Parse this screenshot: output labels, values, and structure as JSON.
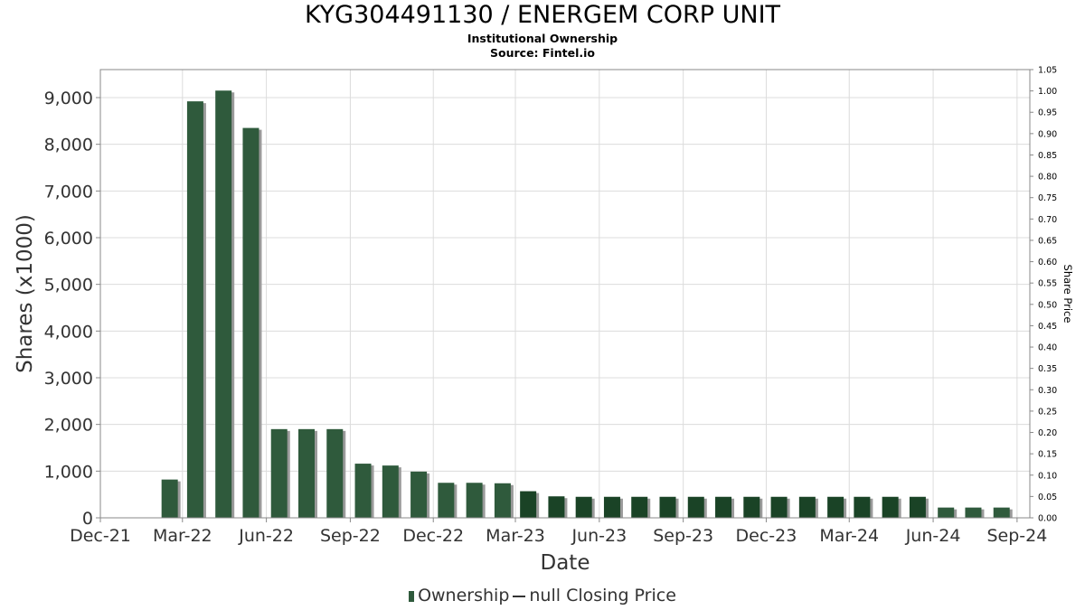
{
  "title": "KYG304491130 / ENERGEM CORP UNIT",
  "subtitle": "Institutional Ownership",
  "source": "Source: Fintel.io",
  "legend": {
    "ownership_label": "Ownership",
    "price_label": "null Closing Price"
  },
  "colors": {
    "bar": "#2f5a3c",
    "bar_dark": "#1a4326",
    "shadow": "#9a9a9a",
    "grid": "#dcdcdc"
  },
  "chart_data": {
    "type": "bar",
    "xlabel": "Date",
    "ylabel": "Shares (x1000)",
    "y2label": "Share Price",
    "ylim": [
      0,
      9600
    ],
    "y2lim": [
      0,
      1.05
    ],
    "xlim": [
      "2021-12-01",
      "2024-09-15"
    ],
    "grid": true,
    "legend_position": "bottom",
    "x_ticks": [
      "Dec-21",
      "Mar-22",
      "Jun-22",
      "Sep-22",
      "Dec-22",
      "Mar-23",
      "Jun-23",
      "Sep-23",
      "Dec-23",
      "Mar-24",
      "Jun-24",
      "Sep-24"
    ],
    "y_ticks": [
      "0",
      "1,000",
      "2,000",
      "3,000",
      "4,000",
      "5,000",
      "6,000",
      "7,000",
      "8,000",
      "9,000"
    ],
    "y2_ticks": [
      "0.00",
      "0.05",
      "0.10",
      "0.15",
      "0.20",
      "0.25",
      "0.30",
      "0.35",
      "0.40",
      "0.45",
      "0.50",
      "0.55",
      "0.60",
      "0.65",
      "0.70",
      "0.75",
      "0.80",
      "0.85",
      "0.90",
      "0.95",
      "1.00",
      "1.05"
    ],
    "series": [
      {
        "name": "Ownership",
        "x": [
          "2022-02-15",
          "2022-03-15",
          "2022-04-15",
          "2022-05-15",
          "2022-06-15",
          "2022-07-15",
          "2022-08-15",
          "2022-09-15",
          "2022-10-15",
          "2022-11-15",
          "2022-12-15",
          "2023-01-15",
          "2023-02-15",
          "2023-03-15",
          "2023-04-15",
          "2023-05-15",
          "2023-06-15",
          "2023-07-15",
          "2023-08-15",
          "2023-09-15",
          "2023-10-15",
          "2023-11-15",
          "2023-12-15",
          "2024-01-15",
          "2024-02-15",
          "2024-03-15",
          "2024-04-15",
          "2024-05-15",
          "2024-06-15",
          "2024-07-15",
          "2024-08-15"
        ],
        "values": [
          820,
          8920,
          9150,
          8350,
          1900,
          1900,
          1900,
          1160,
          1120,
          990,
          750,
          750,
          740,
          570,
          460,
          450,
          450,
          450,
          450,
          450,
          450,
          450,
          450,
          450,
          450,
          450,
          450,
          450,
          220,
          220,
          220
        ]
      }
    ]
  }
}
